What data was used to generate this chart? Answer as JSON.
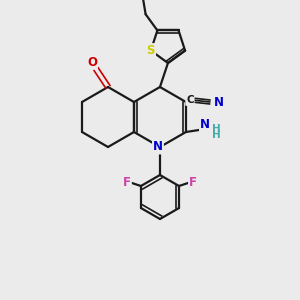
{
  "bg_color": "#ebebeb",
  "bond_color": "#1a1a1a",
  "atom_colors": {
    "N": "#0000cc",
    "O": "#cc0000",
    "F": "#cc44aa",
    "S": "#cccc00",
    "C": "#1a1a1a",
    "H": "#44aaaa"
  },
  "lw": 1.6,
  "lw2": 1.2,
  "fs": 8.5,
  "fs_small": 7.5
}
